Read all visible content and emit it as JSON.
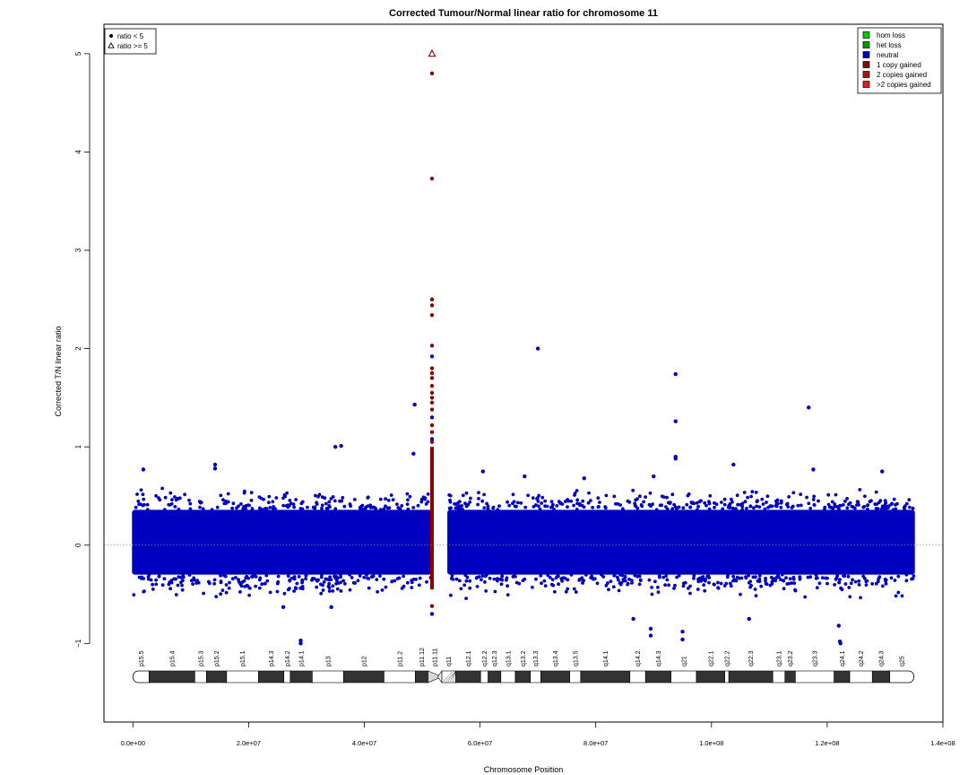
{
  "chart_data": {
    "type": "scatter",
    "title": "Corrected Tumour/Normal linear ratio for chromosome  11",
    "xlabel": "Chromosome Position",
    "ylabel": "Corrected T/N linear ratio",
    "xlim": [
      -5000000,
      140000000
    ],
    "ylim": [
      -1.8,
      5.3
    ],
    "x_ticks": [
      0,
      20000000,
      40000000,
      60000000,
      80000000,
      100000000,
      120000000,
      140000000
    ],
    "x_tick_labels": [
      "0.0e+00",
      "2.0e+07",
      "4.0e+07",
      "6.0e+07",
      "8.0e+07",
      "1.0e+08",
      "1.2e+08",
      "1.4e+08"
    ],
    "y_ticks": [
      -1,
      0,
      1,
      2,
      3,
      4,
      5
    ],
    "y_tick_labels": [
      "−1",
      "0",
      "1",
      "2",
      "3",
      "4",
      "5"
    ],
    "reference_line_y": 0,
    "colors": {
      "neutral": "#0000c0",
      "gained": "#8b0000",
      "hom_loss": "#00cc00",
      "het_loss": "#009900",
      "one_copy": "#7a1010",
      "two_copies": "#a01818",
      "more_copies": "#e02020",
      "reference_line": "#888888"
    },
    "legend_shape": {
      "position": "top-left",
      "items": [
        {
          "symbol": "dot",
          "label": "ratio < 5"
        },
        {
          "symbol": "triangle",
          "label": "ratio >= 5"
        }
      ]
    },
    "legend_status": {
      "position": "top-right",
      "items": [
        {
          "label": "hom loss",
          "color": "#00cc00"
        },
        {
          "label": "het loss",
          "color": "#009900"
        },
        {
          "label": "neutral",
          "color": "#0000c0"
        },
        {
          "label": "1 copy gained",
          "color": "#7a1010"
        },
        {
          "label": "2 copies gained",
          "color": "#a01818"
        },
        {
          "label": ">2 copies gained",
          "color": "#e02020"
        }
      ]
    },
    "bulk_bands": [
      {
        "x_start": 0,
        "x_end": 51500000,
        "y_low": -0.3,
        "y_high": 0.36,
        "status": "neutral"
      },
      {
        "x_start": 54500000,
        "x_end": 135000000,
        "y_low": -0.3,
        "y_high": 0.36,
        "status": "neutral"
      }
    ],
    "gained_column": {
      "x": 51700000,
      "y_low": -0.45,
      "y_high": 1.0
    },
    "highlight_points": [
      {
        "x": 51700000,
        "y": 5.0,
        "shape": "triangle",
        "status": "gained"
      },
      {
        "x": 51700000,
        "y": 4.8,
        "status": "gained"
      },
      {
        "x": 51700000,
        "y": 3.73,
        "status": "gained"
      },
      {
        "x": 51700000,
        "y": 2.5,
        "status": "gained"
      },
      {
        "x": 51700000,
        "y": 2.44,
        "status": "gained"
      },
      {
        "x": 51700000,
        "y": 2.34,
        "status": "gained"
      },
      {
        "x": 51700000,
        "y": 2.03,
        "status": "gained"
      },
      {
        "x": 51700000,
        "y": 1.92,
        "status": "neutral"
      },
      {
        "x": 51700000,
        "y": 1.8,
        "status": "gained"
      },
      {
        "x": 51700000,
        "y": 1.75,
        "status": "gained"
      },
      {
        "x": 51700000,
        "y": 1.7,
        "status": "gained"
      },
      {
        "x": 51700000,
        "y": 1.62,
        "status": "gained"
      },
      {
        "x": 51700000,
        "y": 1.55,
        "status": "gained"
      },
      {
        "x": 51700000,
        "y": 1.5,
        "status": "gained"
      },
      {
        "x": 51700000,
        "y": 1.45,
        "status": "gained"
      },
      {
        "x": 51700000,
        "y": 1.38,
        "status": "gained"
      },
      {
        "x": 51700000,
        "y": 1.3,
        "status": "neutral"
      },
      {
        "x": 51700000,
        "y": 1.22,
        "status": "gained"
      },
      {
        "x": 51700000,
        "y": 1.15,
        "status": "gained"
      },
      {
        "x": 51700000,
        "y": 1.08,
        "status": "neutral"
      },
      {
        "x": 51700000,
        "y": 1.05,
        "status": "gained"
      },
      {
        "x": 51700000,
        "y": -0.62,
        "status": "gained"
      },
      {
        "x": 51700000,
        "y": -0.7,
        "status": "neutral"
      },
      {
        "x": 48700000,
        "y": 1.43,
        "status": "neutral"
      },
      {
        "x": 48500000,
        "y": 0.93,
        "status": "neutral"
      },
      {
        "x": 70000000,
        "y": 2.0,
        "status": "neutral"
      },
      {
        "x": 93800000,
        "y": 1.74,
        "status": "neutral"
      },
      {
        "x": 93800000,
        "y": 1.26,
        "status": "neutral"
      },
      {
        "x": 93800000,
        "y": 0.9,
        "status": "neutral"
      },
      {
        "x": 93800000,
        "y": 0.88,
        "status": "neutral"
      },
      {
        "x": 116800000,
        "y": 1.4,
        "status": "neutral"
      },
      {
        "x": 35000000,
        "y": 1.0,
        "status": "neutral"
      },
      {
        "x": 36000000,
        "y": 1.01,
        "status": "neutral"
      },
      {
        "x": 14200000,
        "y": 0.82,
        "status": "neutral"
      },
      {
        "x": 14200000,
        "y": 0.78,
        "status": "neutral"
      },
      {
        "x": 1800000,
        "y": 0.77,
        "status": "neutral"
      },
      {
        "x": 29000000,
        "y": -0.97,
        "status": "neutral"
      },
      {
        "x": 29000000,
        "y": -1.0,
        "status": "neutral"
      },
      {
        "x": 122000000,
        "y": -0.82,
        "status": "neutral"
      },
      {
        "x": 122200000,
        "y": -0.98,
        "status": "neutral"
      },
      {
        "x": 122300000,
        "y": -1.0,
        "status": "neutral"
      },
      {
        "x": 89500000,
        "y": -0.85,
        "status": "neutral"
      },
      {
        "x": 89500000,
        "y": -0.92,
        "status": "neutral"
      },
      {
        "x": 95000000,
        "y": -0.88,
        "status": "neutral"
      },
      {
        "x": 95000000,
        "y": -0.96,
        "status": "neutral"
      },
      {
        "x": 106500000,
        "y": -0.75,
        "status": "neutral"
      },
      {
        "x": 103800000,
        "y": 0.82,
        "status": "neutral"
      },
      {
        "x": 117600000,
        "y": 0.77,
        "status": "neutral"
      },
      {
        "x": 129500000,
        "y": 0.75,
        "status": "neutral"
      },
      {
        "x": 60500000,
        "y": 0.75,
        "status": "neutral"
      },
      {
        "x": 67700000,
        "y": 0.7,
        "status": "neutral"
      },
      {
        "x": 78000000,
        "y": 0.68,
        "status": "neutral"
      },
      {
        "x": 90000000,
        "y": 0.7,
        "status": "neutral"
      },
      {
        "x": 34300000,
        "y": -0.63,
        "status": "neutral"
      },
      {
        "x": 26000000,
        "y": -0.63,
        "status": "neutral"
      },
      {
        "x": 86500000,
        "y": -0.75,
        "status": "neutral"
      }
    ],
    "ideogram": {
      "bands": [
        {
          "name": "p15.5",
          "start": 0,
          "end": 2800000,
          "stain": "gneg"
        },
        {
          "name": "p15.4",
          "start": 2800000,
          "end": 10700000,
          "stain": "gpos"
        },
        {
          "name": "p15.3",
          "start": 10700000,
          "end": 12700000,
          "stain": "gneg"
        },
        {
          "name": "p15.2",
          "start": 12700000,
          "end": 16200000,
          "stain": "gpos"
        },
        {
          "name": "p15.1",
          "start": 16200000,
          "end": 21700000,
          "stain": "gneg"
        },
        {
          "name": "p14.3",
          "start": 21700000,
          "end": 26100000,
          "stain": "gpos"
        },
        {
          "name": "p14.2",
          "start": 26100000,
          "end": 27200000,
          "stain": "gneg"
        },
        {
          "name": "p14.1",
          "start": 27200000,
          "end": 31000000,
          "stain": "gpos"
        },
        {
          "name": "p13",
          "start": 31000000,
          "end": 36400000,
          "stain": "gneg"
        },
        {
          "name": "p12",
          "start": 36400000,
          "end": 43400000,
          "stain": "gpos"
        },
        {
          "name": "p11.2",
          "start": 43400000,
          "end": 48800000,
          "stain": "gneg"
        },
        {
          "name": "p11.12",
          "start": 48800000,
          "end": 51000000,
          "stain": "gpos"
        },
        {
          "name": "p11.11",
          "start": 51000000,
          "end": 53400000,
          "stain": "acen"
        },
        {
          "name": "q11",
          "start": 53400000,
          "end": 55800000,
          "stain": "stalk"
        },
        {
          "name": "q12.1",
          "start": 55800000,
          "end": 60100000,
          "stain": "gpos"
        },
        {
          "name": "q12.2",
          "start": 60100000,
          "end": 61400000,
          "stain": "gneg"
        },
        {
          "name": "q12.3",
          "start": 61400000,
          "end": 63600000,
          "stain": "gpos"
        },
        {
          "name": "q13.1",
          "start": 63600000,
          "end": 66100000,
          "stain": "gneg"
        },
        {
          "name": "q13.2",
          "start": 66100000,
          "end": 68700000,
          "stain": "gpos"
        },
        {
          "name": "q13.3",
          "start": 68700000,
          "end": 70500000,
          "stain": "gneg"
        },
        {
          "name": "q13.4",
          "start": 70500000,
          "end": 75500000,
          "stain": "gpos"
        },
        {
          "name": "q13.5",
          "start": 75500000,
          "end": 77400000,
          "stain": "gneg"
        },
        {
          "name": "q14.1",
          "start": 77400000,
          "end": 85900000,
          "stain": "gpos"
        },
        {
          "name": "q14.2",
          "start": 85900000,
          "end": 88600000,
          "stain": "gneg"
        },
        {
          "name": "q14.3",
          "start": 88600000,
          "end": 93000000,
          "stain": "gpos"
        },
        {
          "name": "q21",
          "start": 93000000,
          "end": 97400000,
          "stain": "gneg"
        },
        {
          "name": "q22.1",
          "start": 97400000,
          "end": 102300000,
          "stain": "gpos"
        },
        {
          "name": "q22.2",
          "start": 102300000,
          "end": 103000000,
          "stain": "gneg"
        },
        {
          "name": "q22.3",
          "start": 103000000,
          "end": 110600000,
          "stain": "gpos"
        },
        {
          "name": "q23.1",
          "start": 110600000,
          "end": 112700000,
          "stain": "gneg"
        },
        {
          "name": "q23.2",
          "start": 112700000,
          "end": 114500000,
          "stain": "gpos"
        },
        {
          "name": "q23.3",
          "start": 114500000,
          "end": 121200000,
          "stain": "gneg"
        },
        {
          "name": "q24.1",
          "start": 121200000,
          "end": 123900000,
          "stain": "gpos"
        },
        {
          "name": "q24.2",
          "start": 123900000,
          "end": 127800000,
          "stain": "gneg"
        },
        {
          "name": "q24.3",
          "start": 127800000,
          "end": 130800000,
          "stain": "gpos"
        },
        {
          "name": "q25",
          "start": 130800000,
          "end": 135000000,
          "stain": "gneg"
        }
      ]
    }
  }
}
